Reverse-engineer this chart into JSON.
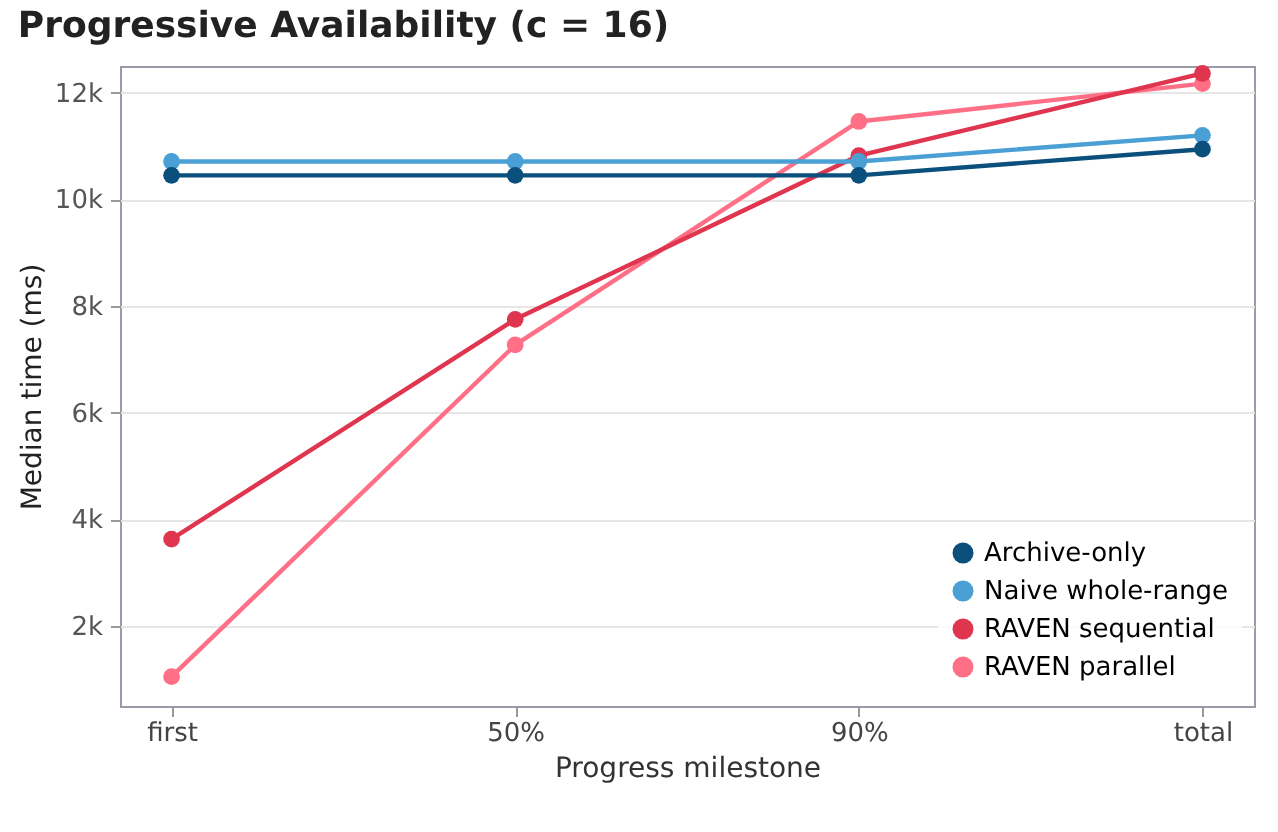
{
  "chart_data": {
    "type": "line",
    "title": "Progressive Availability (c = 16)",
    "xlabel": "Progress milestone",
    "ylabel": "Median time (ms)",
    "categories": [
      "first",
      "50%",
      "90%",
      "total"
    ],
    "series": [
      {
        "name": "Archive-only",
        "color": "#0b4f7c",
        "values": [
          10450,
          10450,
          10450,
          10940
        ]
      },
      {
        "name": "Naive whole-range",
        "color": "#4a9fd5",
        "values": [
          10710,
          10710,
          10710,
          11200
        ]
      },
      {
        "name": "RAVEN sequential",
        "color": "#e0354f",
        "values": [
          3630,
          7750,
          10820,
          12360
        ]
      },
      {
        "name": "RAVEN parallel",
        "color": "#ff6f86",
        "values": [
          1050,
          7270,
          11460,
          12170
        ]
      }
    ],
    "ylim": [
      500,
      12500
    ],
    "yticks": [
      {
        "value": 2000,
        "label": "2k"
      },
      {
        "value": 4000,
        "label": "4k"
      },
      {
        "value": 6000,
        "label": "6k"
      },
      {
        "value": 8000,
        "label": "8k"
      },
      {
        "value": 10000,
        "label": "10k"
      },
      {
        "value": 12000,
        "label": "12k"
      }
    ],
    "grid": "y",
    "legend": "bottom right",
    "marker": "circle",
    "line_style": "solid"
  }
}
